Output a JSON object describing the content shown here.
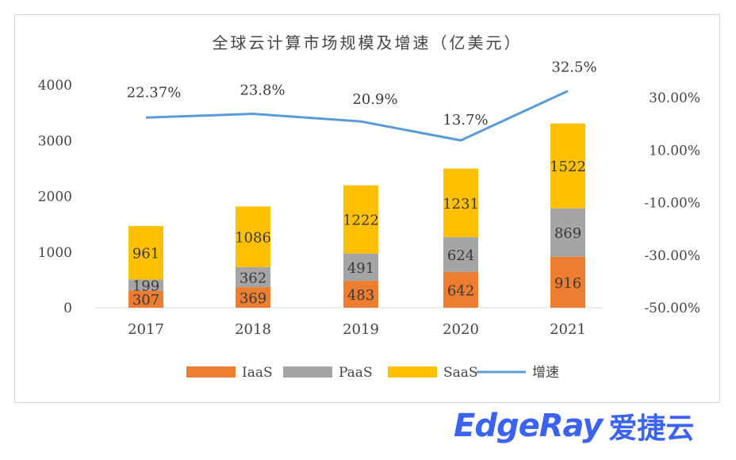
{
  "chart_data": {
    "type": "bar",
    "stacked": true,
    "title": "全球云计算市场规模及增速（亿美元）",
    "categories": [
      "2017",
      "2018",
      "2019",
      "2020",
      "2021"
    ],
    "series": [
      {
        "name": "IaaS",
        "type": "bar",
        "values": [
          307,
          369,
          483,
          642,
          916
        ],
        "color": "#ed7d31"
      },
      {
        "name": "PaaS",
        "type": "bar",
        "values": [
          199,
          362,
          491,
          624,
          869
        ],
        "color": "#a5a5a5"
      },
      {
        "name": "SaaS",
        "type": "bar",
        "values": [
          961,
          1086,
          1222,
          1231,
          1522
        ],
        "color": "#ffc000"
      },
      {
        "name": "增速",
        "type": "line",
        "axis": "right",
        "values": [
          22.37,
          23.8,
          20.9,
          13.7,
          32.5
        ],
        "color": "#5b9bd5"
      }
    ],
    "line_labels": [
      "22.37%",
      "23.8%",
      "20.9%",
      "13.7%",
      "32.5%"
    ],
    "y_left": {
      "ticks": [
        "0",
        "1000",
        "2000",
        "3000",
        "4000"
      ],
      "ylim": [
        0,
        4000
      ]
    },
    "y_right": {
      "ticks": [
        "-50.00%",
        "-30.00%",
        "-10.00%",
        "10.00%",
        "30.00%"
      ],
      "ylim": [
        -50,
        35
      ]
    },
    "legend_position": "bottom",
    "grid": false
  },
  "watermark": {
    "latin": "EdgeRay",
    "cn": "爱捷云"
  }
}
